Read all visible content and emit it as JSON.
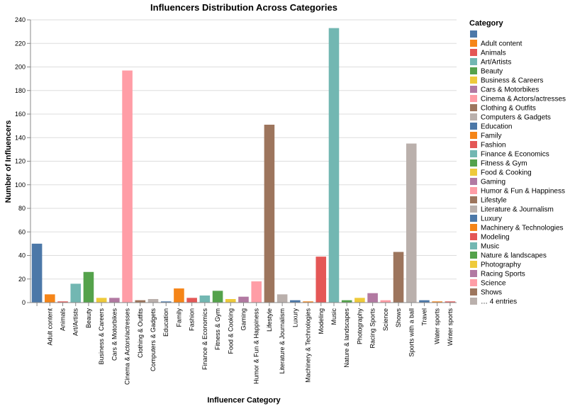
{
  "chart_data": {
    "type": "bar",
    "title": "Influencers Distribution Across Categories",
    "xlabel": "Influencer Category",
    "ylabel": "Number of Influencers",
    "ylim": [
      0,
      240
    ],
    "yticks": [
      0,
      20,
      40,
      60,
      80,
      100,
      120,
      140,
      160,
      180,
      200,
      220,
      240
    ],
    "grid": true,
    "legend_position": "right",
    "legend_title": "Category",
    "legend_overflow_label": "… 4 entries",
    "categories": [
      "",
      "Adult content",
      "Animals",
      "Art/Artists",
      "Beauty",
      "Business & Careers",
      "Cars & Motorbikes",
      "Cinema & Actors/actresses",
      "Clothing & Outfits",
      "Computers & Gadgets",
      "Education",
      "Family",
      "Fashion",
      "Finance & Economics",
      "Fitness & Gym",
      "Food & Cooking",
      "Gaming",
      "Humor & Fun & Happiness",
      "Lifestyle",
      "Literature & Journalism",
      "Luxury",
      "Machinery & Technologies",
      "Modeling",
      "Music",
      "Nature & landscapes",
      "Photography",
      "Racing Sports",
      "Science",
      "Shows",
      "Sports with a ball",
      "Travel",
      "Water sports",
      "Winter sports"
    ],
    "values": [
      50,
      7,
      1,
      16,
      26,
      4,
      4,
      197,
      2,
      3,
      1,
      12,
      4,
      6,
      10,
      3,
      5,
      18,
      151,
      7,
      2,
      1,
      39,
      233,
      2,
      4,
      8,
      2,
      43,
      135,
      2,
      1,
      1
    ],
    "colors": [
      "#4c78a8",
      "#f58518",
      "#e45756",
      "#72b7b2",
      "#54a24b",
      "#eeca3b",
      "#b279a2",
      "#ff9da6",
      "#9d755d",
      "#bab0ac",
      "#4c78a8",
      "#f58518",
      "#e45756",
      "#72b7b2",
      "#54a24b",
      "#eeca3b",
      "#b279a2",
      "#ff9da6",
      "#9d755d",
      "#bab0ac",
      "#4c78a8",
      "#f58518",
      "#e45756",
      "#72b7b2",
      "#54a24b",
      "#eeca3b",
      "#b279a2",
      "#ff9da6",
      "#9d755d",
      "#bab0ac",
      "#4c78a8",
      "#f58518",
      "#e45756"
    ],
    "legend_entries": [
      "",
      "Adult content",
      "Animals",
      "Art/Artists",
      "Beauty",
      "Business & Careers",
      "Cars & Motorbikes",
      "Cinema & Actors/actresses",
      "Clothing & Outfits",
      "Computers & Gadgets",
      "Education",
      "Family",
      "Fashion",
      "Finance & Economics",
      "Fitness & Gym",
      "Food & Cooking",
      "Gaming",
      "Humor & Fun & Happiness",
      "Lifestyle",
      "Literature & Journalism",
      "Luxury",
      "Machinery & Technologies",
      "Modeling",
      "Music",
      "Nature & landscapes",
      "Photography",
      "Racing Sports",
      "Science",
      "Shows"
    ]
  }
}
